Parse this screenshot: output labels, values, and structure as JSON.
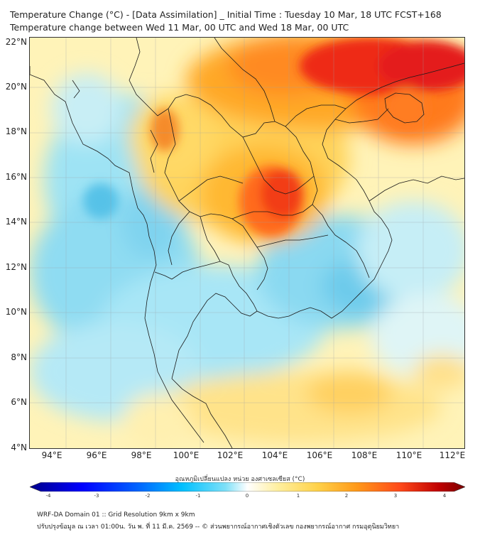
{
  "header": {
    "title_line1": "Temperature Change (°C) - [Data Assimilation] _ Initial Time : Tuesday 10 Mar, 18 UTC FCST+168",
    "title_line2": "Temperature change between Wed 11 Mar, 00 UTC and Wed 18 Mar, 00 UTC"
  },
  "map": {
    "lat_labels": [
      "22°N",
      "20°N",
      "18°N",
      "16°N",
      "14°N",
      "12°N",
      "10°N",
      "8°N",
      "6°N",
      "4°N"
    ],
    "lon_labels": [
      "94°E",
      "96°E",
      "98°E",
      "100°E",
      "102°E",
      "104°E",
      "106°E",
      "108°E",
      "110°E",
      "112°E"
    ],
    "colors": {
      "ocean_cool": "#7fd6ee",
      "neutral": "#fff6c0",
      "warm": "#f7b733",
      "hot": "#ff4a1a",
      "extreme": "#e41a1c"
    }
  },
  "colorbar": {
    "label": "อุณหภูมิเปลี่ยนแปลง หน่วย องศาเซลเซียส (°C)",
    "ticks": [
      "-4",
      "-3",
      "-2",
      "-1",
      "0",
      "1",
      "2",
      "3",
      "4"
    ],
    "colors": [
      "#00008b",
      "#0000ff",
      "#0066ff",
      "#00c0ff",
      "#7fe0f8",
      "#ffffff",
      "#ffef9f",
      "#ffd24a",
      "#ff9a1a",
      "#ff4a1a",
      "#c00000",
      "#7a0000"
    ]
  },
  "footer": {
    "line1": "WRF-DA Domain 01 :: Grid Resolution 9km x 9km",
    "line2": "ปรับปรุงข้อมูล ณ เวลา 01:00น. วัน พ. ที่ 11 มี.ค. 2569 -- © ส่วนพยากรณ์อากาศเชิงตัวเลข กองพยากรณ์อากาศ กรมอุตุนิยมวิทยา"
  }
}
